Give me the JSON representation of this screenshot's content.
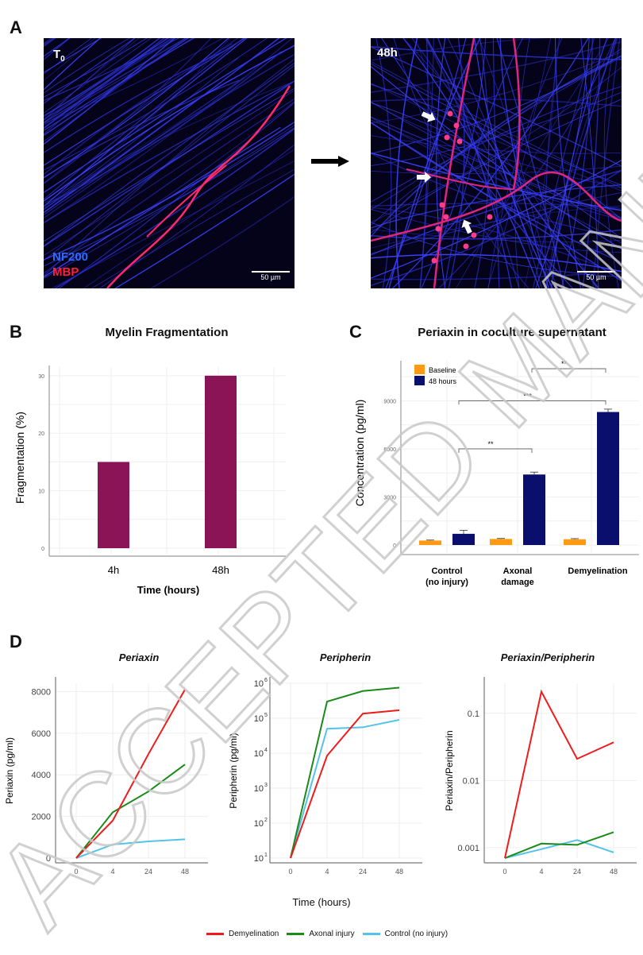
{
  "panel_a": {
    "letter": "A",
    "left_image": {
      "time_label": "T",
      "time_subscript": "0",
      "scale_bar": "50 µm",
      "stain_1": "NF200",
      "stain_2": "MBP"
    },
    "right_image": {
      "time_label": "48h",
      "scale_bar": "50 µm"
    },
    "colors": {
      "nf200": "#2e5bff",
      "mbp": "#ff1f4a"
    }
  },
  "chart_data": [
    {
      "id": "B",
      "type": "bar",
      "letter": "B",
      "title": "Myelin Fragmentation",
      "xlabel": "Time (hours)",
      "ylabel": "Fragmentation (%)",
      "categories": [
        "4h",
        "48h"
      ],
      "values": [
        15,
        30
      ],
      "ylim": [
        0,
        31.5
      ],
      "yticks": [
        "0",
        "10",
        "20",
        "30"
      ],
      "grid": true,
      "color": "#8b1456"
    },
    {
      "id": "C",
      "type": "bar",
      "letter": "C",
      "title": "Periaxin in coculture supernatant",
      "xlabel": "",
      "ylabel": "Concentration (pg/ml)",
      "categories": [
        [
          "Control",
          "(no injury)"
        ],
        [
          "Axonal",
          "damage"
        ],
        [
          "Demyelination"
        ]
      ],
      "series": [
        {
          "name": "Baseline",
          "color": "#ff9a12",
          "values": [
            280,
            380,
            360
          ],
          "errors": [
            30,
            30,
            40
          ]
        },
        {
          "name": "48 hours",
          "color": "#0a0f6e",
          "values": [
            700,
            4400,
            8300
          ],
          "errors": [
            220,
            150,
            180
          ]
        }
      ],
      "ylim": [
        0,
        11500
      ],
      "yticks": [
        "0",
        "3000",
        "6000",
        "9000"
      ],
      "legend_position": "top-left",
      "grid": true,
      "significance": [
        {
          "from": "Control (no injury) 48 hours",
          "to": "Axonal damage 48 hours",
          "label": "**",
          "level": 6000
        },
        {
          "from": "Control (no injury) 48 hours",
          "to": "Demyelination 48 hours",
          "label": "***",
          "level": 9000
        },
        {
          "from": "Axonal damage 48 hours",
          "to": "Demyelination 48 hours",
          "label": "**",
          "level": 11000
        }
      ]
    },
    {
      "id": "D1",
      "type": "line",
      "letter": "D",
      "title": "Periaxin",
      "ylabel": "Periaxin (pg/ml)",
      "x": [
        "0",
        "4",
        "24",
        "48"
      ],
      "yscale": "linear",
      "ylim": [
        0,
        8400
      ],
      "yticks": [
        "0",
        "2000",
        "4000",
        "6000",
        "8000"
      ],
      "series": [
        {
          "name": "Demyelination",
          "color": "#ee1c1c",
          "values": [
            0,
            1800,
            5000,
            8100
          ]
        },
        {
          "name": "Axonal injury",
          "color": "#1a8a1a",
          "values": [
            0,
            2200,
            3200,
            4500
          ]
        },
        {
          "name": "Control (no injury)",
          "color": "#55c3e8",
          "values": [
            0,
            650,
            800,
            900
          ]
        }
      ]
    },
    {
      "id": "D2",
      "type": "line",
      "title": "Peripherin",
      "ylabel": "Peripherin (pg/ml)",
      "x": [
        "0",
        "4",
        "24",
        "48"
      ],
      "yscale": "log",
      "ylim": [
        10,
        1000000
      ],
      "yticks": [
        "10^1",
        "10^2",
        "10^3",
        "10^4",
        "10^5",
        "10^6"
      ],
      "series": [
        {
          "name": "Demyelination",
          "color": "#ee1c1c",
          "values": [
            10,
            8500,
            135000,
            170000
          ]
        },
        {
          "name": "Axonal injury",
          "color": "#1a8a1a",
          "values": [
            10,
            300000,
            600000,
            750000
          ]
        },
        {
          "name": "Control (no injury)",
          "color": "#55c3e8",
          "values": [
            10,
            50000,
            55000,
            90000
          ]
        }
      ]
    },
    {
      "id": "D3",
      "type": "line",
      "title": "Periaxin/Peripherin",
      "ylabel": "Periaxin/Peripherin",
      "x": [
        "0",
        "4",
        "24",
        "48"
      ],
      "yscale": "log",
      "ylim": [
        0.0007,
        0.28
      ],
      "yticks": [
        "0.001",
        "0.01",
        "0.1"
      ],
      "series": [
        {
          "name": "Demyelination",
          "color": "#ee1c1c",
          "values": [
            0.0007,
            0.21,
            0.021,
            0.037
          ]
        },
        {
          "name": "Axonal injury",
          "color": "#1a8a1a",
          "values": [
            0.0007,
            0.00115,
            0.0011,
            0.0017
          ]
        },
        {
          "name": "Control (no injury)",
          "color": "#55c3e8",
          "values": [
            0.0007,
            0.00095,
            0.0013,
            0.00085
          ]
        }
      ]
    }
  ],
  "panel_d": {
    "xlabel": "Time (hours)",
    "legend": [
      {
        "label": "Demyelination",
        "color": "#ee1c1c"
      },
      {
        "label": "Axonal injury",
        "color": "#1a8a1a"
      },
      {
        "label": "Control (no injury)",
        "color": "#55c3e8"
      }
    ]
  },
  "watermark": "ACCEPTED MANUSCRIPT"
}
